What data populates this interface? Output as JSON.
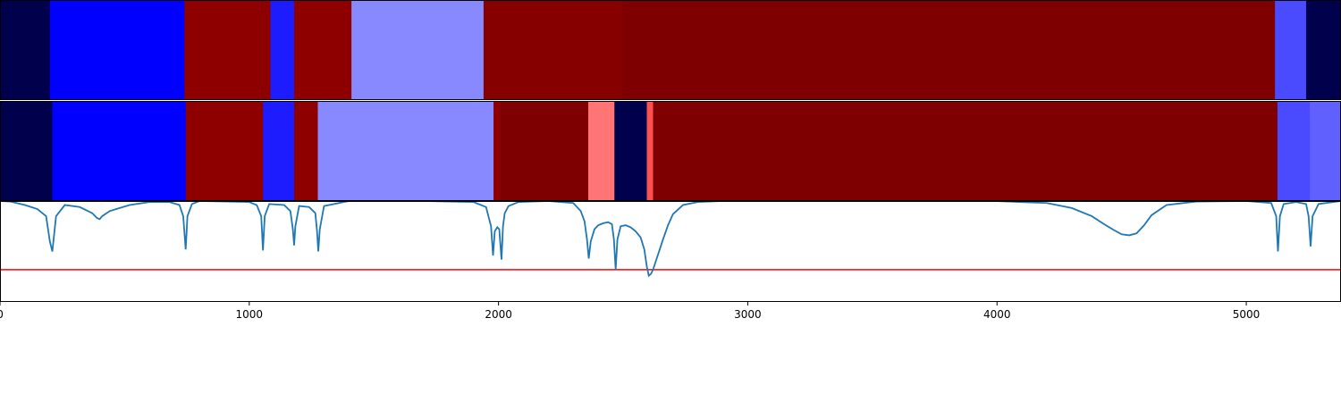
{
  "chart_data": [
    {
      "type": "heatmap",
      "orientation": "horizontal segments",
      "xlim": [
        0,
        5380
      ],
      "colormap": "seismic",
      "segments": [
        {
          "start": 0,
          "end": 200,
          "color": "#00004c"
        },
        {
          "start": 200,
          "end": 740,
          "color": "#0000ff"
        },
        {
          "start": 740,
          "end": 1085,
          "color": "#8e0000"
        },
        {
          "start": 1085,
          "end": 1180,
          "color": "#1c1cff"
        },
        {
          "start": 1180,
          "end": 1410,
          "color": "#8e0000"
        },
        {
          "start": 1410,
          "end": 1940,
          "color": "#8888ff"
        },
        {
          "start": 1940,
          "end": 2495,
          "color": "#860000"
        },
        {
          "start": 2495,
          "end": 5115,
          "color": "#7f0000"
        },
        {
          "start": 5115,
          "end": 5240,
          "color": "#4a4aff"
        },
        {
          "start": 5240,
          "end": 5380,
          "color": "#00004c"
        }
      ]
    },
    {
      "type": "heatmap",
      "orientation": "horizontal segments",
      "xlim": [
        0,
        5380
      ],
      "colormap": "seismic",
      "segments": [
        {
          "start": 0,
          "end": 210,
          "color": "#00004c"
        },
        {
          "start": 210,
          "end": 745,
          "color": "#0000ff"
        },
        {
          "start": 745,
          "end": 1055,
          "color": "#8e0000"
        },
        {
          "start": 1055,
          "end": 1180,
          "color": "#1c1cff"
        },
        {
          "start": 1180,
          "end": 1275,
          "color": "#8e0000"
        },
        {
          "start": 1275,
          "end": 1980,
          "color": "#8888ff"
        },
        {
          "start": 1980,
          "end": 2010,
          "color": "#8e0000"
        },
        {
          "start": 2010,
          "end": 2360,
          "color": "#7f0000"
        },
        {
          "start": 2360,
          "end": 2465,
          "color": "#ff7474"
        },
        {
          "start": 2465,
          "end": 2595,
          "color": "#00004c"
        },
        {
          "start": 2595,
          "end": 2620,
          "color": "#ff5050"
        },
        {
          "start": 2620,
          "end": 5125,
          "color": "#7f0000"
        },
        {
          "start": 5125,
          "end": 5255,
          "color": "#4a4aff"
        },
        {
          "start": 5255,
          "end": 5380,
          "color": "#6060ff"
        }
      ]
    },
    {
      "type": "line",
      "xlim": [
        0,
        5380
      ],
      "ylim": [
        0,
        1
      ],
      "x_ticks": [
        0,
        1000,
        2000,
        3000,
        4000,
        5000
      ],
      "series": [
        {
          "color": "#1f77b4",
          "x": [
            0,
            40,
            100,
            150,
            185,
            200,
            210,
            225,
            260,
            320,
            370,
            390,
            400,
            410,
            440,
            520,
            600,
            680,
            720,
            735,
            745,
            752,
            770,
            800,
            1000,
            1030,
            1048,
            1055,
            1062,
            1080,
            1140,
            1165,
            1175,
            1180,
            1185,
            1200,
            1240,
            1265,
            1272,
            1277,
            1283,
            1300,
            1400,
            1700,
            1900,
            1950,
            1970,
            1978,
            1985,
            1995,
            2003,
            2012,
            2018,
            2025,
            2040,
            2080,
            2200,
            2300,
            2330,
            2345,
            2355,
            2362,
            2370,
            2385,
            2400,
            2420,
            2440,
            2455,
            2463,
            2470,
            2477,
            2490,
            2510,
            2530,
            2550,
            2570,
            2585,
            2595,
            2603,
            2612,
            2620,
            2640,
            2660,
            2680,
            2700,
            2740,
            2800,
            2900,
            3200,
            3600,
            4000,
            4200,
            4300,
            4380,
            4430,
            4470,
            4500,
            4530,
            4560,
            4590,
            4620,
            4680,
            4800,
            5000,
            5100,
            5120,
            5127,
            5135,
            5150,
            5200,
            5240,
            5250,
            5258,
            5266,
            5290,
            5380
          ],
          "y": [
            1.0,
            0.995,
            0.96,
            0.92,
            0.85,
            0.6,
            0.5,
            0.85,
            0.96,
            0.94,
            0.88,
            0.83,
            0.82,
            0.85,
            0.9,
            0.96,
            0.99,
            0.99,
            0.96,
            0.85,
            0.52,
            0.85,
            0.97,
            1.0,
            0.99,
            0.96,
            0.85,
            0.51,
            0.85,
            0.97,
            0.96,
            0.9,
            0.72,
            0.56,
            0.75,
            0.95,
            0.94,
            0.88,
            0.7,
            0.5,
            0.72,
            0.95,
            1.0,
            1.0,
            0.99,
            0.94,
            0.75,
            0.46,
            0.7,
            0.74,
            0.72,
            0.42,
            0.75,
            0.88,
            0.95,
            0.99,
            1.0,
            0.98,
            0.9,
            0.8,
            0.62,
            0.43,
            0.6,
            0.72,
            0.76,
            0.78,
            0.79,
            0.77,
            0.62,
            0.32,
            0.62,
            0.75,
            0.76,
            0.74,
            0.7,
            0.64,
            0.52,
            0.35,
            0.26,
            0.28,
            0.32,
            0.47,
            0.62,
            0.76,
            0.87,
            0.96,
            0.99,
            1.0,
            1.0,
            1.0,
            0.999,
            0.98,
            0.93,
            0.85,
            0.77,
            0.71,
            0.67,
            0.66,
            0.68,
            0.76,
            0.86,
            0.96,
            0.995,
            1.0,
            0.98,
            0.85,
            0.5,
            0.85,
            0.97,
            0.99,
            0.97,
            0.85,
            0.55,
            0.85,
            0.97,
            1.0
          ]
        }
      ],
      "threshold": {
        "y": 0.32,
        "color": "#ff0000"
      }
    }
  ]
}
